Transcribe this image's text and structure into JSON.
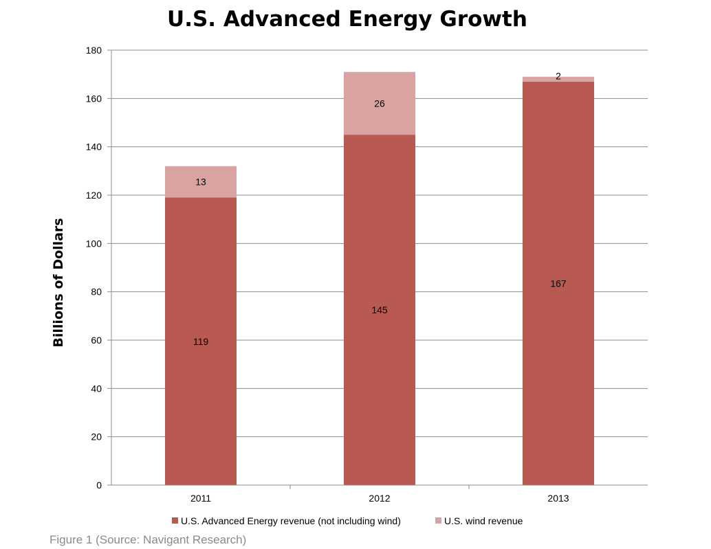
{
  "caption": "Figure 1 (Source: Navigant Research)",
  "colors": {
    "advanced": "#b85a52",
    "wind": "#d9a3a2",
    "grid": "#8c8c8c"
  },
  "chart_data": {
    "type": "bar",
    "stacked": true,
    "title": "U.S. Advanced Energy Growth",
    "xlabel": "",
    "ylabel": "Billions of Dollars",
    "ylim": [
      0,
      180
    ],
    "yticks": [
      0,
      20,
      40,
      60,
      80,
      100,
      120,
      140,
      160,
      180
    ],
    "grid": true,
    "legend_position": "bottom",
    "categories": [
      "2011",
      "2012",
      "2013"
    ],
    "series": [
      {
        "name": "U.S. Advanced Energy revenue (not including wind)",
        "values": [
          119,
          145,
          167
        ],
        "labels": [
          "119",
          "145",
          "167"
        ]
      },
      {
        "name": "U.S. wind revenue",
        "values": [
          13,
          26,
          2
        ],
        "labels": [
          "13",
          "26",
          "2"
        ]
      }
    ]
  }
}
